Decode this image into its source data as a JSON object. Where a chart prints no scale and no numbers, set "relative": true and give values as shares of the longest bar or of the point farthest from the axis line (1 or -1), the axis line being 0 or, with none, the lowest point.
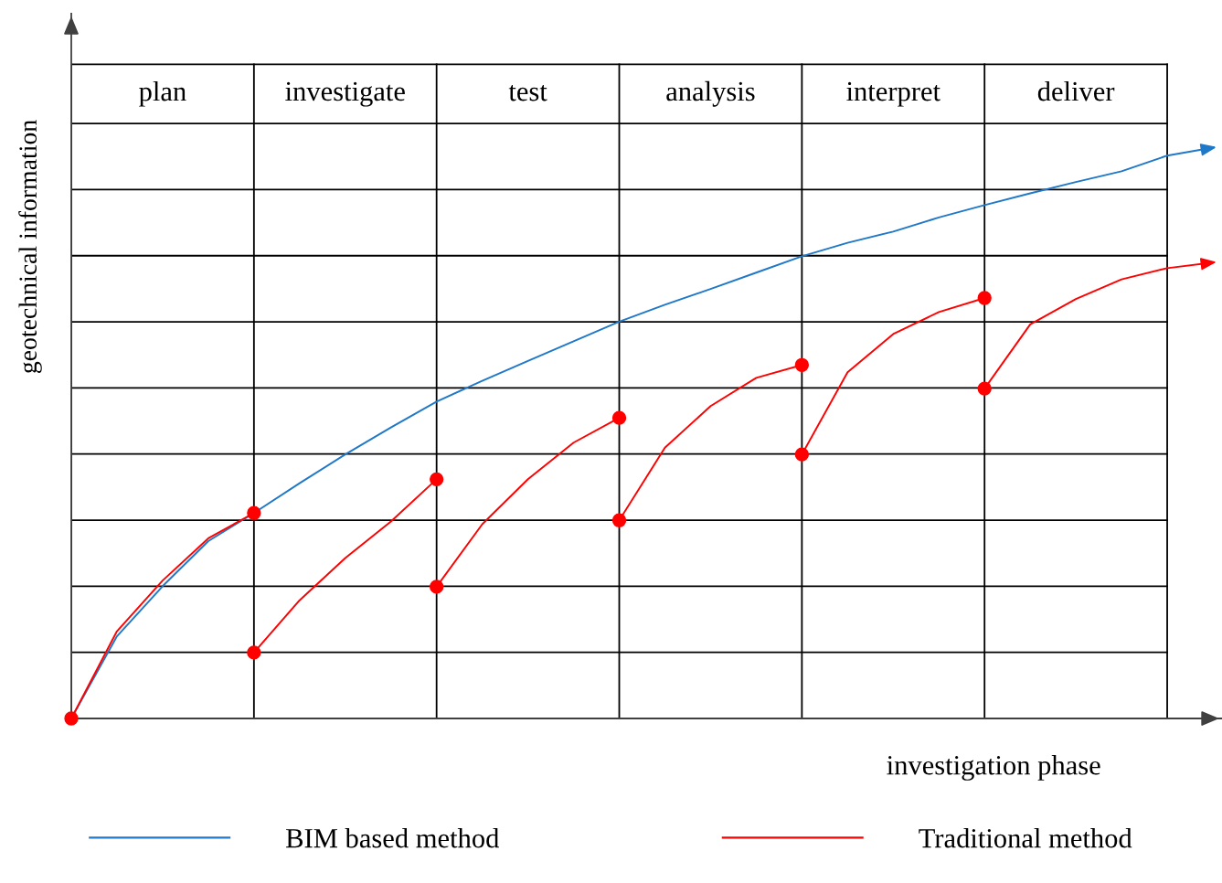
{
  "chart_data": {
    "type": "line",
    "relative": true,
    "xlabel": "investigation phase",
    "ylabel": "geotechnical information",
    "categories": [
      null,
      null,
      "plan",
      null,
      null,
      null,
      "investigate",
      null,
      null,
      null,
      "test",
      null,
      null,
      null,
      "analysis",
      null,
      null,
      null,
      "interpret",
      null,
      null,
      null,
      "deliver",
      null,
      null
    ],
    "grid": true,
    "legend": "bottom",
    "marker": "none",
    "line_style": "solid",
    "series": [
      {
        "name": "BIM based method",
        "color": "#1f78c8",
        "values": [
          0,
          0.146,
          0.235,
          0.315,
          0.365,
          0.418,
          0.469,
          0.517,
          0.563,
          0.6,
          0.635,
          0.67,
          0.705,
          0.735,
          0.763,
          0.792,
          0.821,
          0.845,
          0.865,
          0.89,
          0.912,
          0.933,
          0.953,
          0.972,
          1.0
        ]
      },
      {
        "name": "Traditional method",
        "color": "#ff0000",
        "values": [
          0,
          0.155,
          0.245,
          0.32,
          0.365,
          null,
          null,
          null,
          null,
          null,
          null,
          null,
          null,
          null,
          null,
          null,
          null,
          null,
          null,
          null,
          null,
          null,
          null,
          null,
          null
        ]
      },
      {
        "color": "#ff0000",
        "values": [
          null,
          null,
          null,
          null,
          0.117,
          0.21,
          0.285,
          0.35,
          0.425,
          null,
          null,
          null,
          null,
          null,
          null,
          null,
          null,
          null,
          null,
          null,
          null,
          null,
          null,
          null,
          null
        ]
      },
      {
        "color": "#ff0000",
        "values": [
          null,
          null,
          null,
          null,
          null,
          null,
          null,
          null,
          0.234,
          0.345,
          0.425,
          0.49,
          0.534,
          null,
          null,
          null,
          null,
          null,
          null,
          null,
          null,
          null,
          null,
          null,
          null
        ]
      },
      {
        "color": "#ff0000",
        "values": [
          null,
          null,
          null,
          null,
          null,
          null,
          null,
          null,
          null,
          null,
          null,
          null,
          0.352,
          0.481,
          0.555,
          0.605,
          0.628,
          null,
          null,
          null,
          null,
          null,
          null,
          null,
          null
        ]
      },
      {
        "color": "#ff0000",
        "values": [
          null,
          null,
          null,
          null,
          null,
          null,
          null,
          null,
          null,
          null,
          null,
          null,
          null,
          null,
          null,
          null,
          0.469,
          0.615,
          0.683,
          0.722,
          0.747,
          null,
          null,
          null,
          null
        ]
      },
      {
        "color": "#ff0000",
        "values": [
          null,
          null,
          null,
          null,
          null,
          null,
          null,
          null,
          null,
          null,
          null,
          null,
          null,
          null,
          null,
          null,
          null,
          null,
          null,
          null,
          0.586,
          0.7,
          0.745,
          0.78,
          0.8
        ]
      },
      {
        "type": "scatter",
        "marker": "circle",
        "color": "#ff0000",
        "values": [
          0,
          null,
          null,
          null,
          0.117,
          null,
          null,
          null,
          0.234,
          null,
          null,
          null,
          0.352,
          null,
          null,
          null,
          0.469,
          null,
          null,
          null,
          0.586,
          null,
          null,
          null,
          null
        ]
      },
      {
        "type": "scatter",
        "marker": "circle",
        "color": "#ff0000",
        "values": [
          null,
          null,
          null,
          null,
          0.365,
          null,
          null,
          null,
          0.425,
          null,
          null,
          null,
          0.534,
          null,
          null,
          null,
          0.628,
          null,
          null,
          null,
          0.747,
          null,
          null,
          null,
          null
        ]
      }
    ]
  }
}
